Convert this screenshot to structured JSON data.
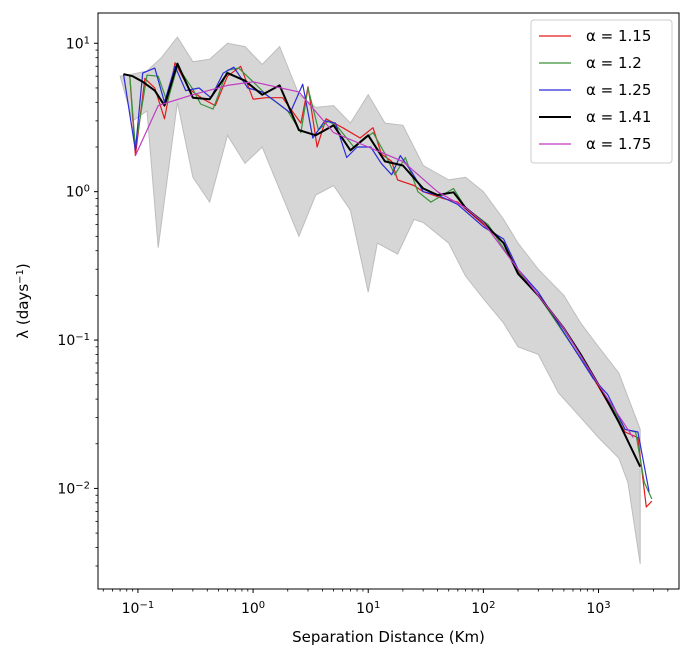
{
  "chart_data": {
    "type": "line",
    "xscale": "log",
    "yscale": "log",
    "xlim": [
      0.045,
      5000
    ],
    "ylim": [
      0.0021,
      16
    ],
    "xlabel": "Separation Distance (Km)",
    "ylabel": {
      "main": "λ (days",
      "sup": "−1",
      "close": ")"
    },
    "xticks": [
      {
        "value": 0.1,
        "base": "10",
        "exp": "−1"
      },
      {
        "value": 1,
        "base": "10",
        "exp": "0"
      },
      {
        "value": 10,
        "base": "10",
        "exp": "1"
      },
      {
        "value": 100,
        "base": "10",
        "exp": "2"
      },
      {
        "value": 1000,
        "base": "10",
        "exp": "3"
      }
    ],
    "yticks": [
      {
        "value": 0.01,
        "base": "10",
        "exp": "−2"
      },
      {
        "value": 0.1,
        "base": "10",
        "exp": "−1"
      },
      {
        "value": 1,
        "base": "10",
        "exp": "0"
      },
      {
        "value": 10,
        "base": "10",
        "exp": "1"
      }
    ],
    "legend_position": "top-right",
    "band": {
      "color": "#d6d6d6",
      "edge_color": "#bdbdbd",
      "upper": [
        [
          0.07,
          6.0
        ],
        [
          0.09,
          6.2
        ],
        [
          0.12,
          6.5
        ],
        [
          0.16,
          8.0
        ],
        [
          0.22,
          11.0
        ],
        [
          0.3,
          7.5
        ],
        [
          0.42,
          7.8
        ],
        [
          0.6,
          10.0
        ],
        [
          0.85,
          9.5
        ],
        [
          1.2,
          7.2
        ],
        [
          1.7,
          9.5
        ],
        [
          2.5,
          4.5
        ],
        [
          3.5,
          3.7
        ],
        [
          5,
          3.8
        ],
        [
          7,
          2.9
        ],
        [
          10,
          4.5
        ],
        [
          14,
          2.9
        ],
        [
          20,
          2.8
        ],
        [
          30,
          1.5
        ],
        [
          50,
          1.2
        ],
        [
          70,
          1.25
        ],
        [
          100,
          1.0
        ],
        [
          150,
          0.65
        ],
        [
          200,
          0.45
        ],
        [
          300,
          0.3
        ],
        [
          500,
          0.2
        ],
        [
          700,
          0.13
        ],
        [
          1000,
          0.09
        ],
        [
          1500,
          0.06
        ],
        [
          2300,
          0.025
        ]
      ],
      "lower": [
        [
          2300,
          0.0031
        ],
        [
          1800,
          0.011
        ],
        [
          1500,
          0.016
        ],
        [
          1000,
          0.022
        ],
        [
          700,
          0.03
        ],
        [
          450,
          0.044
        ],
        [
          300,
          0.08
        ],
        [
          200,
          0.09
        ],
        [
          150,
          0.13
        ],
        [
          100,
          0.19
        ],
        [
          70,
          0.27
        ],
        [
          50,
          0.45
        ],
        [
          30,
          0.62
        ],
        [
          25,
          0.65
        ],
        [
          18,
          0.38
        ],
        [
          12,
          0.45
        ],
        [
          10,
          0.21
        ],
        [
          7,
          0.75
        ],
        [
          5,
          1.1
        ],
        [
          3.5,
          0.95
        ],
        [
          2.5,
          0.5
        ],
        [
          1.2,
          2.0
        ],
        [
          0.85,
          1.55
        ],
        [
          0.6,
          2.4
        ],
        [
          0.42,
          0.85
        ],
        [
          0.3,
          1.25
        ],
        [
          0.22,
          4.0
        ],
        [
          0.15,
          0.42
        ],
        [
          0.12,
          3.5
        ],
        [
          0.09,
          3.0
        ],
        [
          0.07,
          6.0
        ]
      ]
    },
    "series": [
      {
        "name": "α = 1.15",
        "color": "#e41a1c",
        "width": 1.2,
        "points": [
          [
            0.085,
            6.0
          ],
          [
            0.095,
            1.75
          ],
          [
            0.115,
            5.8
          ],
          [
            0.14,
            5.0
          ],
          [
            0.17,
            3.1
          ],
          [
            0.21,
            7.4
          ],
          [
            0.28,
            4.9
          ],
          [
            0.37,
            4.2
          ],
          [
            0.47,
            3.8
          ],
          [
            0.6,
            6.0
          ],
          [
            0.78,
            7.0
          ],
          [
            1.0,
            4.2
          ],
          [
            1.3,
            4.3
          ],
          [
            1.8,
            4.3
          ],
          [
            2.6,
            2.9
          ],
          [
            3.0,
            5.1
          ],
          [
            3.6,
            2.0
          ],
          [
            4.3,
            3.1
          ],
          [
            6.0,
            2.7
          ],
          [
            8.5,
            2.3
          ],
          [
            11,
            2.7
          ],
          [
            13,
            1.8
          ],
          [
            16,
            1.6
          ],
          [
            18,
            1.2
          ],
          [
            25,
            1.1
          ],
          [
            30,
            1.0
          ],
          [
            45,
            0.9
          ],
          [
            60,
            0.85
          ],
          [
            100,
            0.6
          ],
          [
            150,
            0.45
          ],
          [
            200,
            0.29
          ],
          [
            320,
            0.19
          ],
          [
            600,
            0.09
          ],
          [
            850,
            0.06
          ],
          [
            1200,
            0.038
          ],
          [
            1700,
            0.024
          ],
          [
            2200,
            0.022
          ],
          [
            2600,
            0.0075
          ],
          [
            2900,
            0.0082
          ]
        ]
      },
      {
        "name": "α = 1.2",
        "color": "#3a923a",
        "width": 1.2,
        "points": [
          [
            0.085,
            6.0
          ],
          [
            0.095,
            2.0
          ],
          [
            0.12,
            6.1
          ],
          [
            0.15,
            6.0
          ],
          [
            0.18,
            4.0
          ],
          [
            0.22,
            7.0
          ],
          [
            0.3,
            4.9
          ],
          [
            0.35,
            3.9
          ],
          [
            0.45,
            3.6
          ],
          [
            0.6,
            6.6
          ],
          [
            0.75,
            6.8
          ],
          [
            1.0,
            5.5
          ],
          [
            1.3,
            4.5
          ],
          [
            2.0,
            3.5
          ],
          [
            2.6,
            2.5
          ],
          [
            3.0,
            5.0
          ],
          [
            3.7,
            2.6
          ],
          [
            4.5,
            3.0
          ],
          [
            5.5,
            2.7
          ],
          [
            7.5,
            2.0
          ],
          [
            11,
            2.5
          ],
          [
            14,
            1.8
          ],
          [
            17,
            1.3
          ],
          [
            21,
            1.7
          ],
          [
            27,
            1.0
          ],
          [
            35,
            0.85
          ],
          [
            55,
            1.05
          ],
          [
            70,
            0.78
          ],
          [
            110,
            0.6
          ],
          [
            140,
            0.45
          ],
          [
            210,
            0.28
          ],
          [
            300,
            0.2
          ],
          [
            600,
            0.09
          ],
          [
            850,
            0.06
          ],
          [
            1200,
            0.04
          ],
          [
            1700,
            0.025
          ],
          [
            2100,
            0.024
          ],
          [
            2500,
            0.011
          ],
          [
            2900,
            0.0085
          ]
        ]
      },
      {
        "name": "α = 1.25",
        "color": "#2b2bd9",
        "width": 1.2,
        "points": [
          [
            0.075,
            6.2
          ],
          [
            0.095,
            1.9
          ],
          [
            0.11,
            6.3
          ],
          [
            0.14,
            6.8
          ],
          [
            0.17,
            4.0
          ],
          [
            0.21,
            7.0
          ],
          [
            0.26,
            4.8
          ],
          [
            0.34,
            5.0
          ],
          [
            0.43,
            4.3
          ],
          [
            0.55,
            6.3
          ],
          [
            0.68,
            6.9
          ],
          [
            0.9,
            5.0
          ],
          [
            1.2,
            4.7
          ],
          [
            1.6,
            4.0
          ],
          [
            2.1,
            3.4
          ],
          [
            2.7,
            5.3
          ],
          [
            3.3,
            2.3
          ],
          [
            4.2,
            3.0
          ],
          [
            5.2,
            2.9
          ],
          [
            6.5,
            1.7
          ],
          [
            8,
            2.0
          ],
          [
            10.5,
            2.0
          ],
          [
            13,
            1.55
          ],
          [
            16,
            1.3
          ],
          [
            19,
            1.75
          ],
          [
            24,
            1.35
          ],
          [
            30,
            1.0
          ],
          [
            40,
            0.95
          ],
          [
            60,
            0.82
          ],
          [
            100,
            0.58
          ],
          [
            150,
            0.48
          ],
          [
            200,
            0.3
          ],
          [
            300,
            0.21
          ],
          [
            600,
            0.09
          ],
          [
            900,
            0.055
          ],
          [
            1200,
            0.043
          ],
          [
            1700,
            0.025
          ],
          [
            2200,
            0.024
          ],
          [
            2750,
            0.0095
          ]
        ]
      },
      {
        "name": "α = 1.41",
        "color": "#000000",
        "width": 2.0,
        "points": [
          [
            0.075,
            6.2
          ],
          [
            0.09,
            6.0
          ],
          [
            0.11,
            5.5
          ],
          [
            0.14,
            4.8
          ],
          [
            0.17,
            3.8
          ],
          [
            0.22,
            7.3
          ],
          [
            0.3,
            4.3
          ],
          [
            0.42,
            4.2
          ],
          [
            0.6,
            6.3
          ],
          [
            0.85,
            5.6
          ],
          [
            1.2,
            4.5
          ],
          [
            1.7,
            5.2
          ],
          [
            2.5,
            2.6
          ],
          [
            3.5,
            2.4
          ],
          [
            5,
            2.8
          ],
          [
            7,
            1.9
          ],
          [
            10,
            2.4
          ],
          [
            14,
            1.6
          ],
          [
            20,
            1.5
          ],
          [
            30,
            1.05
          ],
          [
            40,
            0.95
          ],
          [
            55,
            0.99
          ],
          [
            70,
            0.78
          ],
          [
            100,
            0.62
          ],
          [
            150,
            0.45
          ],
          [
            200,
            0.28
          ],
          [
            300,
            0.2
          ],
          [
            500,
            0.12
          ],
          [
            700,
            0.08
          ],
          [
            1000,
            0.05
          ],
          [
            1500,
            0.028
          ],
          [
            2300,
            0.014
          ]
        ]
      },
      {
        "name": "α = 1.75",
        "color": "#c23bc2",
        "width": 1.2,
        "points": [
          [
            0.095,
            1.75
          ],
          [
            0.15,
            3.8
          ],
          [
            0.3,
            4.5
          ],
          [
            0.6,
            5.2
          ],
          [
            1.0,
            5.5
          ],
          [
            2.5,
            4.7
          ],
          [
            5,
            2.5
          ],
          [
            10,
            2.0
          ],
          [
            20,
            1.6
          ],
          [
            40,
            1.0
          ],
          [
            70,
            0.78
          ],
          [
            100,
            0.62
          ],
          [
            200,
            0.3
          ],
          [
            500,
            0.12
          ],
          [
            1000,
            0.05
          ],
          [
            2000,
            0.022
          ]
        ]
      }
    ]
  }
}
